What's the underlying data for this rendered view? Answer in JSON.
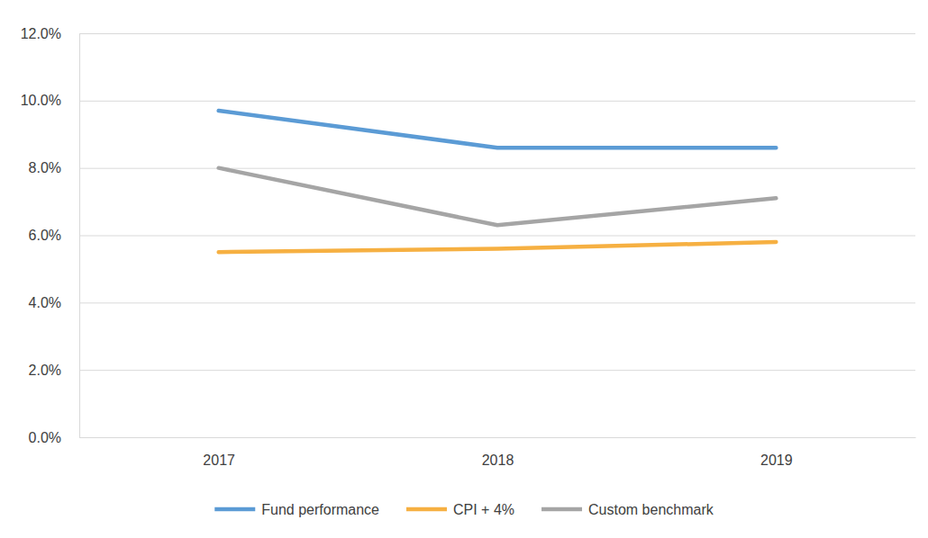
{
  "chart_data": {
    "type": "line",
    "categories": [
      "2017",
      "2018",
      "2019"
    ],
    "series": [
      {
        "name": "Fund performance",
        "color": "#5b9bd5",
        "values": [
          9.7,
          8.6,
          8.6
        ]
      },
      {
        "name": "CPI + 4%",
        "color": "#f6b042",
        "values": [
          5.5,
          5.6,
          5.8
        ]
      },
      {
        "name": "Custom benchmark",
        "color": "#a5a5a5",
        "values": [
          8.0,
          6.3,
          7.1
        ]
      }
    ],
    "ylim": [
      0,
      12
    ],
    "yticks": [
      {
        "value": 0,
        "label": "0.0%"
      },
      {
        "value": 2,
        "label": "2.0%"
      },
      {
        "value": 4,
        "label": "4.0%"
      },
      {
        "value": 6,
        "label": "6.0%"
      },
      {
        "value": 8,
        "label": "8.0%"
      },
      {
        "value": 10,
        "label": "10.0%"
      },
      {
        "value": 12,
        "label": "12.0%"
      }
    ],
    "grid": true,
    "legend": "bottom"
  }
}
